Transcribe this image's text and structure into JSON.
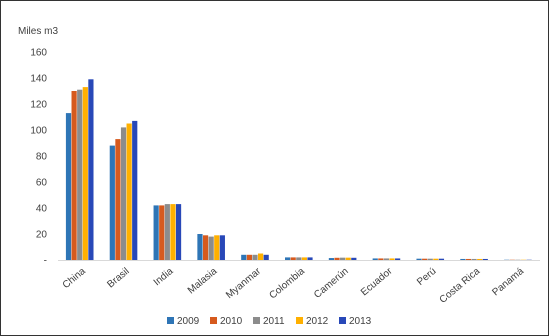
{
  "chart_data": {
    "type": "bar",
    "title": "",
    "ylabel": "Miles m3",
    "xlabel": "",
    "ylim": [
      0,
      160
    ],
    "yticks": [
      "-",
      "20",
      "40",
      "60",
      "80",
      "100",
      "120",
      "140",
      "160"
    ],
    "categories": [
      "China",
      "Brasil",
      "India",
      "Malasia",
      "Myanmar",
      "Colombia",
      "Camerún",
      "Ecuador",
      "Perú",
      "Costa Rica",
      "Panamá"
    ],
    "series": [
      {
        "name": "2009",
        "color": "#2E75B6",
        "values": [
          113,
          88,
          42,
          20,
          4,
          2,
          1.5,
          1.2,
          1,
          0.8,
          0.2
        ]
      },
      {
        "name": "2010",
        "color": "#D65A1E",
        "values": [
          130,
          93,
          42,
          19,
          4,
          2,
          1.7,
          1.2,
          1,
          0.8,
          0.2
        ]
      },
      {
        "name": "2011",
        "color": "#8C8C8C",
        "values": [
          131,
          102,
          43,
          18,
          4,
          2,
          1.8,
          1.2,
          1,
          0.8,
          0.2
        ]
      },
      {
        "name": "2012",
        "color": "#FFB000",
        "values": [
          133,
          105,
          43,
          19,
          5,
          2,
          1.8,
          1.2,
          1,
          0.8,
          0.2
        ]
      },
      {
        "name": "2013",
        "color": "#2848B8",
        "values": [
          139,
          107,
          43,
          19,
          4,
          2,
          1.7,
          1.2,
          1,
          0.8,
          0.2
        ]
      }
    ],
    "grid": false,
    "legend_position": "bottom"
  }
}
